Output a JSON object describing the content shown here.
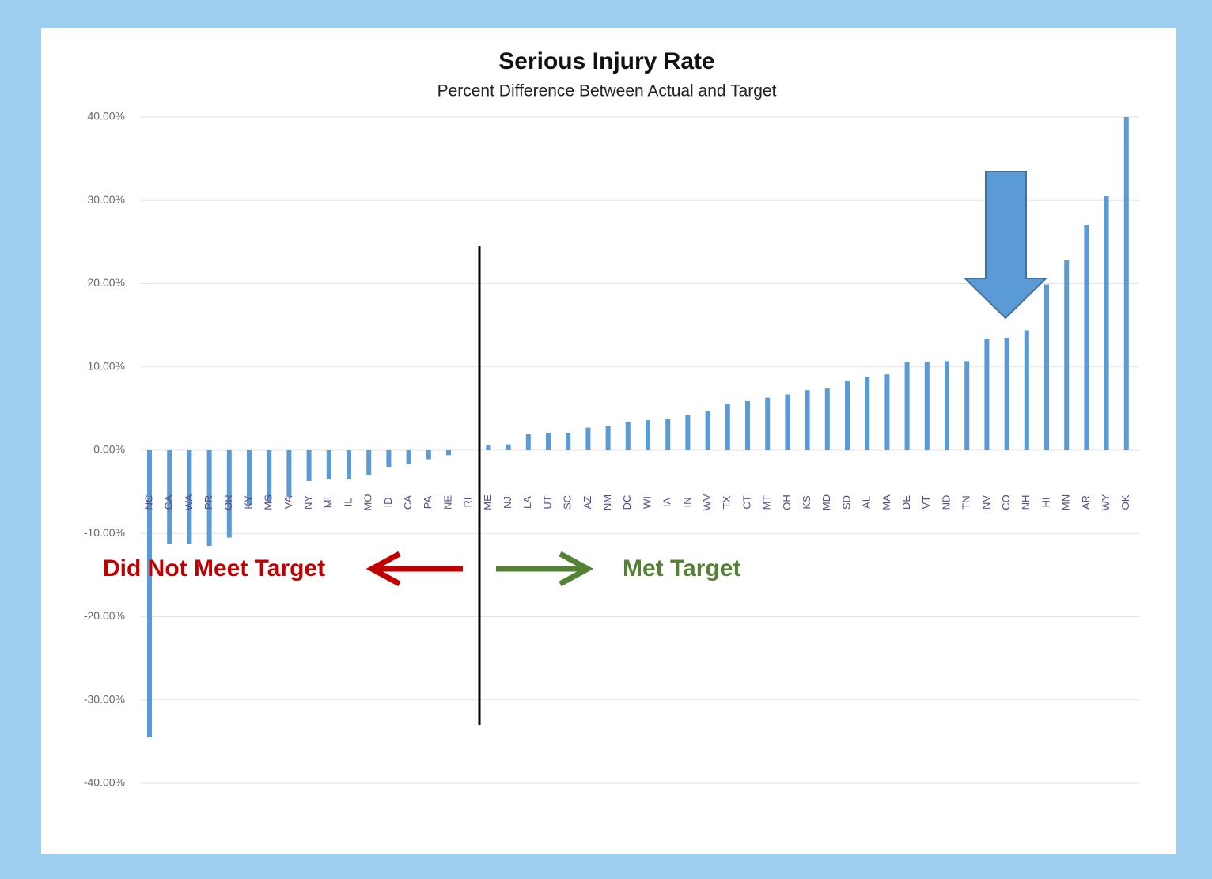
{
  "chart_data": {
    "type": "bar",
    "title": "Serious Injury Rate",
    "subtitle": "Percent Difference Between Actual and Target",
    "categories": [
      "NC",
      "GA",
      "WA",
      "PR",
      "OR",
      "KY",
      "MS",
      "VA",
      "NY",
      "MI",
      "IL",
      "MO",
      "ID",
      "CA",
      "PA",
      "NE",
      "RI",
      "ME",
      "NJ",
      "LA",
      "UT",
      "SC",
      "AZ",
      "NM",
      "DC",
      "WI",
      "IA",
      "IN",
      "WV",
      "TX",
      "CT",
      "MT",
      "OH",
      "KS",
      "MD",
      "SD",
      "AL",
      "MA",
      "DE",
      "VT",
      "ND",
      "TN",
      "NV",
      "CO",
      "NH",
      "HI",
      "MN",
      "AR",
      "WY",
      "OK"
    ],
    "values": [
      -34.5,
      -11.3,
      -11.3,
      -11.5,
      -10.5,
      -6.6,
      -6.2,
      -5.6,
      -3.7,
      -3.5,
      -3.5,
      -3.0,
      -2.0,
      -1.7,
      -1.1,
      -0.6,
      0,
      0.6,
      0.7,
      1.9,
      2.1,
      2.1,
      2.7,
      2.9,
      3.4,
      3.6,
      3.8,
      4.2,
      4.7,
      5.6,
      5.9,
      6.3,
      6.7,
      7.2,
      7.4,
      8.3,
      8.8,
      9.1,
      10.6,
      10.6,
      10.7,
      10.7,
      13.4,
      13.5,
      14.4,
      19.9,
      22.8,
      27.0,
      30.5,
      40.0
    ],
    "color": "#5b9bd5",
    "ylim": [
      -40,
      40
    ],
    "yticks": [
      {
        "value": 40,
        "label": "40.00%"
      },
      {
        "value": 30,
        "label": "30.00%"
      },
      {
        "value": 20,
        "label": "20.00%"
      },
      {
        "value": 10,
        "label": "10.00%"
      },
      {
        "value": 0,
        "label": "0.00%"
      },
      {
        "value": -10,
        "label": "-10.00%"
      },
      {
        "value": -20,
        "label": "-20.00%"
      },
      {
        "value": -30,
        "label": "-30.00%"
      },
      {
        "value": -40,
        "label": "-40.00%"
      }
    ],
    "grid": true,
    "annotations": [
      "Did Not Meet Target",
      "Met Target"
    ]
  }
}
